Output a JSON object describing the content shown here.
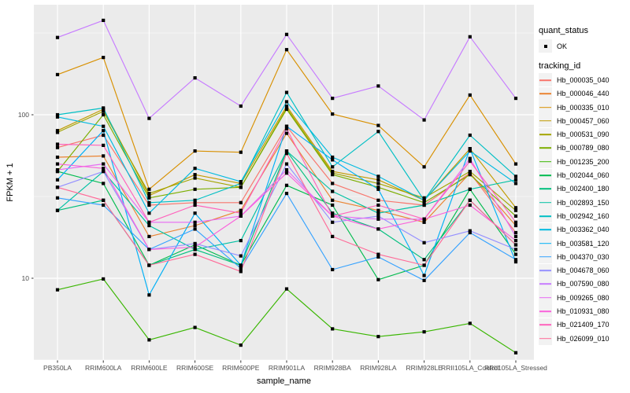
{
  "figure": {
    "background": "#FFFFFF",
    "panel_background": "#EBEBEB",
    "gridline_color": "#FFFFFF",
    "axis_text_color": "#4D4D4D",
    "tick_mark_color": "#333333",
    "point_color": "#000000"
  },
  "axes": {
    "x_title": "sample_name",
    "y_title": "FPKM + 1",
    "y_tick_labels": [
      "100",
      "10"
    ],
    "y_tick_values": [
      100,
      10
    ]
  },
  "legend": {
    "quant_status_title": "quant_status",
    "quant_status_item": "OK",
    "tracking_id_title": "tracking_id"
  },
  "chart_data": {
    "type": "line",
    "title": "",
    "xlabel": "sample_name",
    "ylabel": "FPKM + 1",
    "legend_position": "right",
    "grid": true,
    "y_axis": {
      "scale": "log10",
      "ticks": [
        10,
        100
      ],
      "minor_breaks": [
        3.162,
        31.62,
        316.2
      ],
      "range": [
        3.16,
        471
      ]
    },
    "point_marker": {
      "shape": "square",
      "color": "#000000",
      "label": "OK"
    },
    "x_categories": [
      "PB350LA",
      "RRIM600LA",
      "RRIM600LE",
      "RRIM600SE",
      "RRIM600PE",
      "RRIM901LA",
      "RRIM928BA",
      "RRIM928LA",
      "RRIM928LE",
      "RRII105LA_Control",
      "RRII105LA_Stressed"
    ],
    "series": [
      {
        "name": "Hb_000035_040",
        "color": "#F8766D",
        "values": [
          63,
          75,
          28,
          29,
          29,
          85,
          38,
          30,
          28,
          44,
          19
        ]
      },
      {
        "name": "Hb_000046_440",
        "color": "#EA8331",
        "values": [
          55,
          56,
          18,
          21,
          26,
          77,
          30,
          26,
          22,
          44,
          21
        ]
      },
      {
        "name": "Hb_000335_010",
        "color": "#D89000",
        "values": [
          176,
          224,
          35,
          60,
          59,
          250,
          101,
          86,
          48,
          132,
          50
        ]
      },
      {
        "name": "Hb_000457_060",
        "color": "#C09B00",
        "values": [
          80,
          108,
          32,
          43,
          38,
          113,
          45,
          40,
          30,
          62,
          27
        ]
      },
      {
        "name": "Hb_000531_090",
        "color": "#A3A500",
        "values": [
          78,
          105,
          33,
          41,
          36,
          110,
          44,
          38,
          31,
          45,
          26
        ]
      },
      {
        "name": "Hb_000789_080",
        "color": "#7CAE00",
        "values": [
          45,
          100,
          31,
          35,
          36,
          108,
          43,
          36,
          29,
          43,
          24
        ]
      },
      {
        "name": "Hb_001235_200",
        "color": "#39B600",
        "values": [
          8.5,
          9.9,
          4.2,
          5.0,
          3.9,
          8.6,
          4.9,
          4.4,
          4.7,
          5.3,
          3.5
        ]
      },
      {
        "name": "Hb_002044_060",
        "color": "#00BB4E",
        "values": [
          45,
          38,
          12,
          16,
          12,
          37,
          28,
          9.8,
          12,
          35,
          14
        ]
      },
      {
        "name": "Hb_002400_180",
        "color": "#00BF7D",
        "values": [
          26,
          30,
          12,
          15,
          12,
          60,
          25,
          20,
          13,
          30,
          16
        ]
      },
      {
        "name": "Hb_002893_150",
        "color": "#00C1A3",
        "values": [
          26,
          45,
          21,
          15,
          17,
          60,
          34,
          25,
          28,
          35,
          40
        ]
      },
      {
        "name": "Hb_002942_160",
        "color": "#00BFC4",
        "values": [
          100,
          110,
          29,
          30,
          38,
          137,
          48,
          79,
          30,
          75,
          42
        ]
      },
      {
        "name": "Hb_003362_040",
        "color": "#00BAE0",
        "values": [
          97,
          85,
          25,
          47,
          39,
          120,
          55,
          42,
          30,
          60,
          38
        ]
      },
      {
        "name": "Hb_003581_120",
        "color": "#00B0F6",
        "values": [
          40,
          80,
          7.9,
          25,
          12,
          85,
          53,
          35,
          10.4,
          62,
          12.6
        ]
      },
      {
        "name": "Hb_004370_030",
        "color": "#35A2FF",
        "values": [
          31,
          28,
          15,
          20,
          11.5,
          33,
          11.3,
          13.5,
          9.7,
          19,
          13
        ]
      },
      {
        "name": "Hb_004678_060",
        "color": "#9590FF",
        "values": [
          36,
          45,
          15,
          16.3,
          13.7,
          50,
          22,
          24,
          16.5,
          19.5,
          15
        ]
      },
      {
        "name": "Hb_007590_080",
        "color": "#C77CFF",
        "values": [
          297,
          378,
          95,
          168,
          113,
          310,
          126,
          150,
          93,
          300,
          126
        ]
      },
      {
        "name": "Hb_009265_080",
        "color": "#E76BF3",
        "values": [
          46,
          50,
          22,
          22,
          24,
          46,
          24,
          23,
          23,
          54,
          18
        ]
      },
      {
        "name": "Hb_010931_080",
        "color": "#FA62DB",
        "values": [
          50,
          47,
          15,
          15.5,
          24,
          44,
          24,
          20,
          23,
          28,
          17
        ]
      },
      {
        "name": "Hb_021409_170",
        "color": "#FF62BC",
        "values": [
          66,
          65,
          22,
          28,
          25,
          82,
          24,
          28,
          23,
          52,
          22
        ]
      },
      {
        "name": "Hb_026099_010",
        "color": "#FF6A98",
        "values": [
          36,
          30,
          12,
          14,
          11,
          58,
          18,
          14,
          12,
          30,
          16
        ]
      }
    ]
  }
}
